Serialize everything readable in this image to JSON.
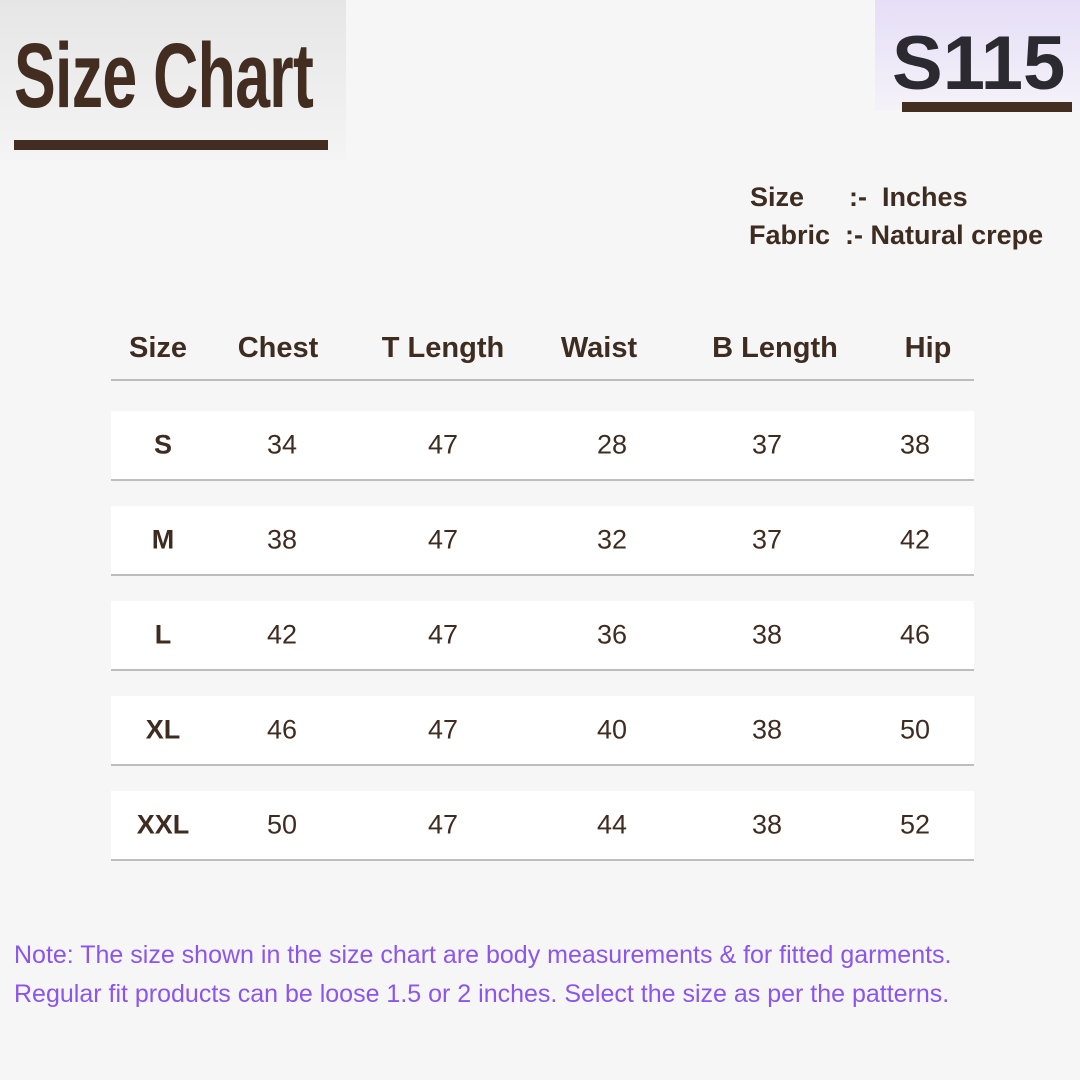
{
  "header": {
    "title": "Size Chart",
    "code": "S115"
  },
  "info": [
    {
      "label": "Size",
      "sep": ":-",
      "value": "Inches"
    },
    {
      "label": "Fabric",
      "sep": ":-",
      "value": "Natural crepe"
    }
  ],
  "table": {
    "columns": [
      "Size",
      "Chest",
      "T Length",
      "Waist",
      "B Length",
      "Hip"
    ],
    "rows": [
      [
        "S",
        "34",
        "47",
        "28",
        "37",
        "38"
      ],
      [
        "M",
        "38",
        "47",
        "32",
        "37",
        "42"
      ],
      [
        "L",
        "42",
        "47",
        "36",
        "38",
        "46"
      ],
      [
        "XL",
        "46",
        "47",
        "40",
        "38",
        "50"
      ],
      [
        "XXL",
        "50",
        "47",
        "44",
        "38",
        "52"
      ]
    ]
  },
  "note": [
    "Note: The size shown in the size chart are body measurements & for fitted garments.",
    "Regular fit products can be loose 1.5 or 2 inches. Select the size as per the patterns."
  ],
  "colors": {
    "brown": "#432d21",
    "note": "#8b55ee"
  }
}
